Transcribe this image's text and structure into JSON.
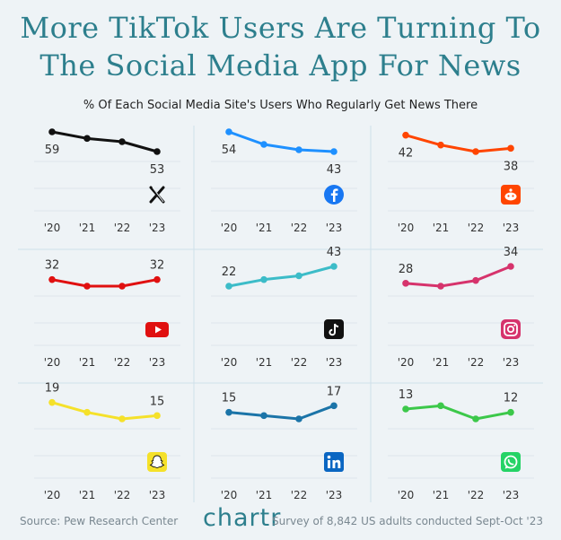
{
  "header": {
    "title_line1": "More TikTok Users Are Turning To",
    "title_line2": "The Social Media App For News",
    "subtitle": "% Of Each Social Media Site's Users Who Regularly Get News There"
  },
  "footer": {
    "source": "Source: Pew Research Center",
    "brand": "chartr",
    "note": "Survey of 8,842 US adults conducted Sept-Oct '23"
  },
  "chart_data": [
    {
      "type": "line",
      "platform": "X",
      "icon": "x-icon",
      "color": "#111111",
      "x": [
        "'20",
        "'21",
        "'22",
        "'23"
      ],
      "values": [
        59,
        57,
        56,
        53
      ],
      "labels": [
        "59",
        "53"
      ]
    },
    {
      "type": "line",
      "platform": "Facebook",
      "icon": "facebook-icon",
      "color": "#1e90ff",
      "x": [
        "'20",
        "'21",
        "'22",
        "'23"
      ],
      "values": [
        54,
        47,
        44,
        43
      ],
      "labels": [
        "54",
        "43"
      ]
    },
    {
      "type": "line",
      "platform": "Reddit",
      "icon": "reddit-icon",
      "color": "#ff4500",
      "x": [
        "'20",
        "'21",
        "'22",
        "'23"
      ],
      "values": [
        42,
        39,
        37,
        38
      ],
      "labels": [
        "42",
        "38"
      ]
    },
    {
      "type": "line",
      "platform": "YouTube",
      "icon": "youtube-icon",
      "color": "#e01010",
      "x": [
        "'20",
        "'21",
        "'22",
        "'23"
      ],
      "values": [
        32,
        30,
        30,
        32
      ],
      "labels": [
        "32",
        "32"
      ]
    },
    {
      "type": "line",
      "platform": "TikTok",
      "icon": "tiktok-icon",
      "color": "#3cbcc8",
      "x": [
        "'20",
        "'21",
        "'22",
        "'23"
      ],
      "values": [
        22,
        29,
        33,
        43
      ],
      "labels": [
        "22",
        "43"
      ]
    },
    {
      "type": "line",
      "platform": "Instagram",
      "icon": "instagram-icon",
      "color": "#d6336c",
      "x": [
        "'20",
        "'21",
        "'22",
        "'23"
      ],
      "values": [
        28,
        27,
        29,
        34
      ],
      "labels": [
        "28",
        "34"
      ]
    },
    {
      "type": "line",
      "platform": "Snapchat",
      "icon": "snapchat-icon",
      "color": "#f5e12a",
      "x": [
        "'20",
        "'21",
        "'22",
        "'23"
      ],
      "values": [
        19,
        16,
        14,
        15
      ],
      "labels": [
        "19",
        "15"
      ]
    },
    {
      "type": "line",
      "platform": "LinkedIn",
      "icon": "linkedin-icon",
      "color": "#1b74a8",
      "x": [
        "'20",
        "'21",
        "'22",
        "'23"
      ],
      "values": [
        15,
        14,
        13,
        17
      ],
      "labels": [
        "15",
        "17"
      ]
    },
    {
      "type": "line",
      "platform": "WhatsApp",
      "icon": "whatsapp-icon",
      "color": "#3cc84a",
      "x": [
        "'20",
        "'21",
        "'22",
        "'23"
      ],
      "values": [
        13,
        14,
        10,
        12
      ],
      "labels": [
        "13",
        "12"
      ]
    }
  ]
}
